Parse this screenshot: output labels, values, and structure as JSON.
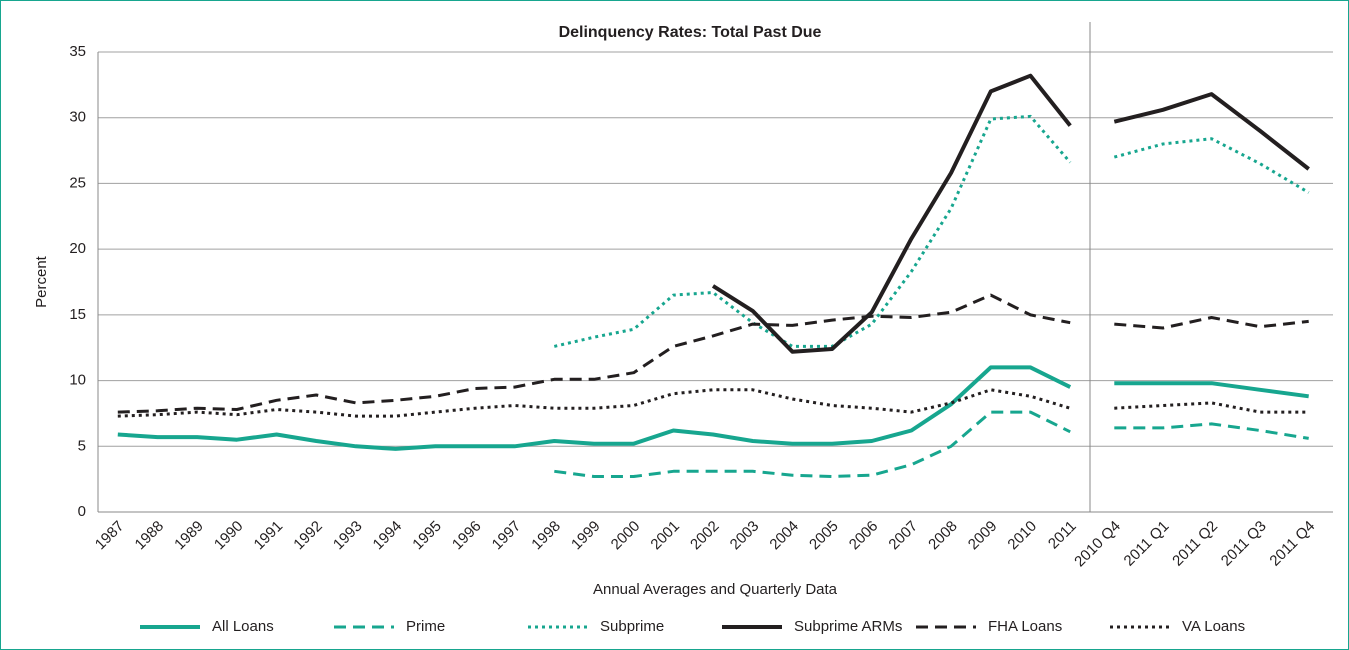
{
  "chart_data": {
    "type": "line",
    "title": "Delinquency Rates: Total Past Due",
    "x_label": "Annual Averages and Quarterly Data",
    "y_label": "Percent",
    "categories": [
      "1987",
      "1988",
      "1989",
      "1990",
      "1991",
      "1992",
      "1993",
      "1994",
      "1995",
      "1996",
      "1997",
      "1998",
      "1999",
      "2000",
      "2001",
      "2002",
      "2003",
      "2004",
      "2005",
      "2006",
      "2007",
      "2008",
      "2009",
      "2010",
      "2011",
      null,
      "2010 Q4",
      "2011 Q1",
      "2011 Q2",
      "2011 Q3",
      "2011 Q4"
    ],
    "ylim": [
      0,
      35
    ],
    "yticks": [
      0,
      5,
      10,
      15,
      20,
      25,
      30,
      35
    ],
    "grid": true,
    "series": [
      {
        "name": "All Loans",
        "color": "#17a68f",
        "style": "solid",
        "values": [
          5.9,
          5.7,
          5.7,
          5.5,
          5.9,
          5.4,
          5.0,
          4.8,
          5.0,
          5.0,
          5.0,
          5.4,
          5.2,
          5.2,
          6.2,
          5.9,
          5.4,
          5.2,
          5.2,
          5.4,
          6.2,
          8.2,
          11.0,
          11.0,
          9.5,
          null,
          9.8,
          9.8,
          9.8,
          9.3,
          8.8
        ]
      },
      {
        "name": "Prime",
        "color": "#17a68f",
        "style": "dashed",
        "values": [
          null,
          null,
          null,
          null,
          null,
          null,
          null,
          null,
          null,
          null,
          null,
          3.1,
          2.7,
          2.7,
          3.1,
          3.1,
          3.1,
          2.8,
          2.7,
          2.8,
          3.6,
          5.0,
          7.6,
          7.6,
          6.1,
          null,
          6.4,
          6.4,
          6.7,
          6.2,
          5.6
        ]
      },
      {
        "name": "Subprime",
        "color": "#17a68f",
        "style": "dotted",
        "values": [
          null,
          null,
          null,
          null,
          null,
          null,
          null,
          null,
          null,
          null,
          null,
          12.6,
          13.3,
          13.9,
          16.5,
          16.7,
          14.4,
          12.6,
          12.6,
          14.3,
          18.3,
          23.1,
          29.9,
          30.1,
          26.6,
          null,
          27.0,
          28.0,
          28.4,
          26.5,
          24.3
        ]
      },
      {
        "name": "Subprime ARMs",
        "color": "#231f20",
        "style": "solid",
        "values": [
          null,
          null,
          null,
          null,
          null,
          null,
          null,
          null,
          null,
          null,
          null,
          null,
          null,
          null,
          null,
          17.2,
          15.3,
          12.2,
          12.4,
          15.2,
          20.8,
          25.8,
          32.0,
          33.2,
          29.4,
          null,
          29.7,
          30.6,
          31.8,
          29.0,
          26.1
        ]
      },
      {
        "name": "FHA Loans",
        "color": "#231f20",
        "style": "dashed",
        "values": [
          7.6,
          7.7,
          7.9,
          7.8,
          8.5,
          8.9,
          8.3,
          8.5,
          8.8,
          9.4,
          9.5,
          10.1,
          10.1,
          10.6,
          12.6,
          13.4,
          14.3,
          14.2,
          14.6,
          14.9,
          14.8,
          15.2,
          16.5,
          15.0,
          14.4,
          null,
          14.3,
          14.0,
          14.8,
          14.1,
          14.5
        ]
      },
      {
        "name": "VA Loans",
        "color": "#231f20",
        "style": "dotted",
        "values": [
          7.3,
          7.4,
          7.6,
          7.4,
          7.8,
          7.6,
          7.3,
          7.3,
          7.6,
          7.9,
          8.1,
          7.9,
          7.9,
          8.1,
          9.0,
          9.3,
          9.3,
          8.6,
          8.1,
          7.9,
          7.6,
          8.3,
          9.3,
          8.8,
          7.9,
          null,
          7.9,
          8.1,
          8.3,
          7.6,
          7.6
        ]
      }
    ]
  }
}
